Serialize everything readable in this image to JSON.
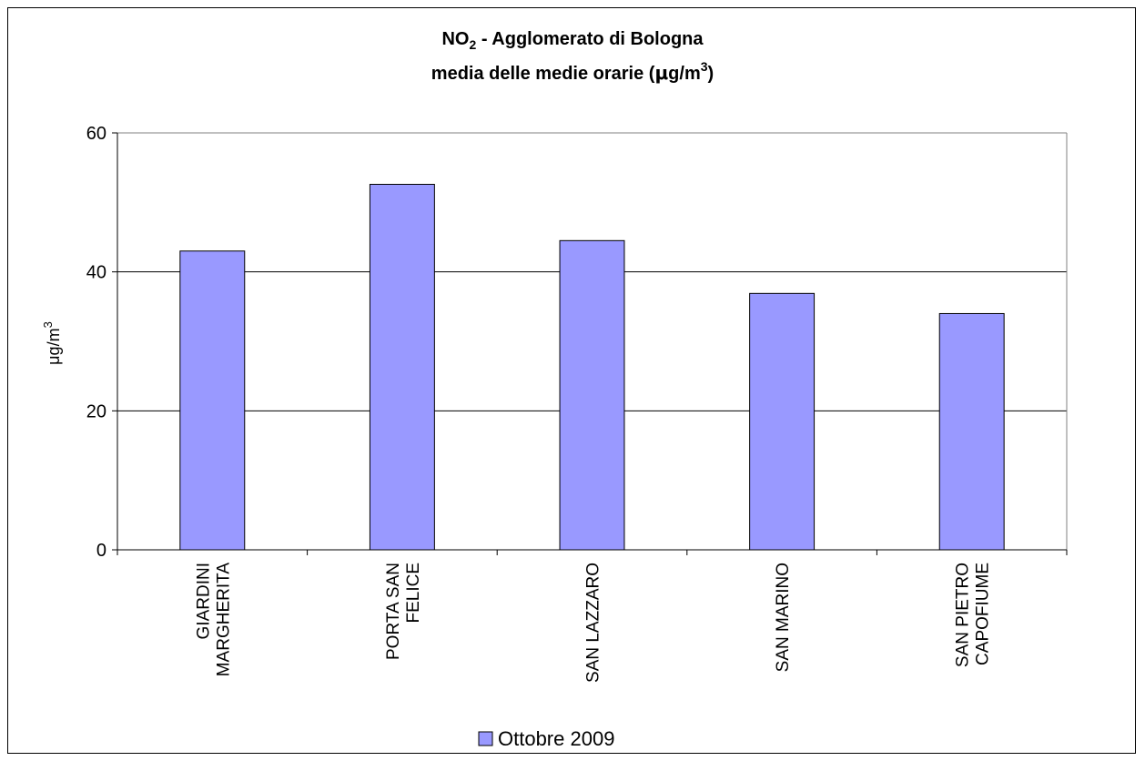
{
  "chart_data": {
    "type": "bar",
    "title_line1_main": "NO",
    "title_line1_sub": "2",
    "title_line1_rest": " - Agglomerato di Bologna",
    "title_line2_pre": "media delle medie orarie (",
    "title_line2_mu": "μ",
    "title_line2_unit": "g/m",
    "title_line2_sup": "3",
    "title_line2_close": ")",
    "ylabel_main": "μg/m",
    "ylabel_sup": "3",
    "ylim": [
      0,
      60
    ],
    "yticks": [
      "0",
      "20",
      "40",
      "60"
    ],
    "grid": true,
    "categories": [
      [
        "GIARDINI",
        "MARGHERITA"
      ],
      [
        "PORTA SAN",
        "FELICE"
      ],
      [
        "SAN LAZZARO"
      ],
      [
        "SAN MARINO"
      ],
      [
        "SAN PIETRO",
        "CAPOFIUME"
      ]
    ],
    "series": [
      {
        "name": "Ottobre 2009",
        "values": [
          43,
          52.6,
          44.5,
          36.9,
          34
        ],
        "color": "#9999ff"
      }
    ],
    "legend_position": "bottom"
  }
}
